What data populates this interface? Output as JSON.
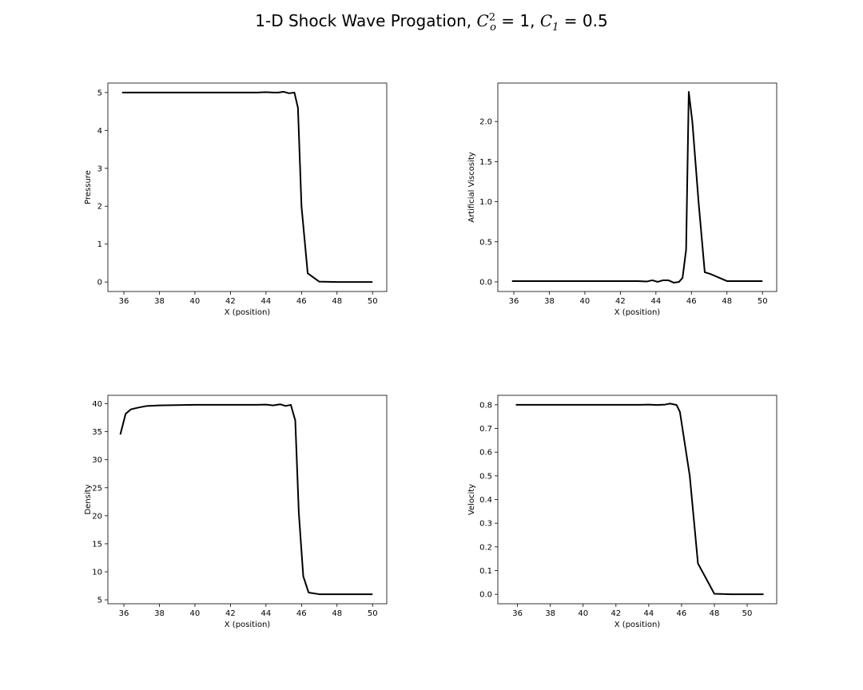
{
  "figure": {
    "title_prefix": "1-D Shock Wave Progation, ",
    "title_c": "C",
    "title_c_sub": "o",
    "title_c_sup": "2",
    "title_eq1": " = 1, ",
    "title_c1": "C",
    "title_c1_sub": "1",
    "title_eq2": " = 0.5"
  },
  "chart_data": [
    {
      "type": "line",
      "title": "",
      "xlabel": "X (position)",
      "ylabel": "Pressure",
      "xlim": [
        35.1,
        50.8
      ],
      "ylim": [
        -0.25,
        5.25
      ],
      "xticks": [
        36,
        38,
        40,
        42,
        44,
        46,
        48,
        50
      ],
      "yticks": [
        0,
        1,
        2,
        3,
        4,
        5
      ],
      "ytick_labels": [
        "0",
        "1",
        "2",
        "3",
        "4",
        "5"
      ],
      "color": "#000000",
      "x": [
        35.9,
        36.5,
        38,
        40,
        42,
        43.5,
        44,
        44.4,
        44.7,
        45.0,
        45.3,
        45.6,
        45.8,
        46.0,
        46.35,
        47.0,
        48.0,
        49.0,
        50.0
      ],
      "y": [
        5.0,
        5.0,
        5.0,
        5.0,
        5.0,
        5.0,
        5.01,
        5.0,
        5.0,
        5.02,
        4.98,
        5.0,
        4.6,
        2.0,
        0.23,
        0.01,
        0.0,
        0.0,
        0.0
      ]
    },
    {
      "type": "line",
      "title": "",
      "xlabel": "X (position)",
      "ylabel": "Artificial Viscosity",
      "xlim": [
        35.1,
        50.8
      ],
      "ylim": [
        -0.12,
        2.48
      ],
      "xticks": [
        36,
        38,
        40,
        42,
        44,
        46,
        48,
        50
      ],
      "yticks": [
        0.0,
        0.5,
        1.0,
        1.5,
        2.0
      ],
      "ytick_labels": [
        "0.0",
        "0.5",
        "1.0",
        "1.5",
        "2.0"
      ],
      "color": "#000000",
      "x": [
        35.9,
        38,
        40,
        42,
        43.0,
        43.5,
        43.8,
        44.1,
        44.4,
        44.7,
        45.0,
        45.3,
        45.5,
        45.7,
        45.85,
        46.05,
        46.4,
        46.75,
        47.05,
        48.0,
        49.0,
        50.0
      ],
      "y": [
        0.01,
        0.01,
        0.01,
        0.01,
        0.01,
        0.005,
        0.02,
        0.0,
        0.02,
        0.02,
        -0.01,
        0.0,
        0.05,
        0.4,
        2.37,
        2.0,
        1.0,
        0.12,
        0.1,
        0.01,
        0.01,
        0.01
      ]
    },
    {
      "type": "line",
      "title": "",
      "xlabel": "X (position)",
      "ylabel": "Density",
      "xlim": [
        35.1,
        50.8
      ],
      "ylim": [
        4.3,
        41.5
      ],
      "xticks": [
        36,
        38,
        40,
        42,
        44,
        46,
        48,
        50
      ],
      "yticks": [
        5,
        10,
        15,
        20,
        25,
        30,
        35,
        40
      ],
      "ytick_labels": [
        "5",
        "10",
        "15",
        "20",
        "25",
        "30",
        "35",
        "40"
      ],
      "color": "#000000",
      "x": [
        35.8,
        36.1,
        36.4,
        36.8,
        37.3,
        38.0,
        40.0,
        42.0,
        43.5,
        44.0,
        44.4,
        44.8,
        45.1,
        45.4,
        45.65,
        45.85,
        46.1,
        46.4,
        47.0,
        48.0,
        49.0,
        50.0
      ],
      "y": [
        34.5,
        38.2,
        39.0,
        39.3,
        39.6,
        39.7,
        39.8,
        39.8,
        39.8,
        39.85,
        39.7,
        39.9,
        39.6,
        39.8,
        37.0,
        20.5,
        9.2,
        6.3,
        6.0,
        6.0,
        6.0,
        6.0
      ]
    },
    {
      "type": "line",
      "title": "",
      "xlabel": "X (position)",
      "ylabel": "Velocity",
      "xlim": [
        34.8,
        51.8
      ],
      "ylim": [
        -0.04,
        0.84
      ],
      "xticks": [
        36,
        38,
        40,
        42,
        44,
        46,
        48,
        50
      ],
      "yticks": [
        0.0,
        0.1,
        0.2,
        0.3,
        0.4,
        0.5,
        0.6,
        0.7,
        0.8
      ],
      "ytick_labels": [
        "0.0",
        "0.1",
        "0.2",
        "0.3",
        "0.4",
        "0.5",
        "0.6",
        "0.7",
        "0.8"
      ],
      "color": "#000000",
      "x": [
        35.9,
        38,
        40,
        42,
        43.5,
        44.0,
        44.5,
        45.0,
        45.3,
        45.7,
        45.9,
        46.5,
        47.0,
        48.0,
        49.0,
        50.0,
        51.0
      ],
      "y": [
        0.8,
        0.8,
        0.8,
        0.8,
        0.8,
        0.801,
        0.799,
        0.801,
        0.805,
        0.799,
        0.77,
        0.5,
        0.13,
        0.002,
        0.0,
        0.0,
        0.0
      ]
    }
  ]
}
